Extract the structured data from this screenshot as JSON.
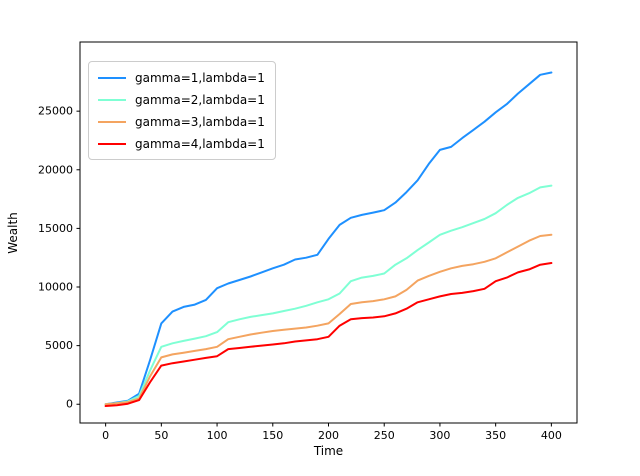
{
  "figure": {
    "background": "#ffffff",
    "frame_color": "#000000",
    "tick_color": "#000000"
  },
  "chart_data": {
    "type": "line",
    "title": "",
    "xlabel": "Time",
    "ylabel": "Wealth",
    "xlim": [
      -23,
      423
    ],
    "ylim": [
      -1600,
      30900
    ],
    "x_ticks": [
      0,
      50,
      100,
      150,
      200,
      250,
      300,
      350,
      400
    ],
    "y_ticks": [
      0,
      5000,
      10000,
      15000,
      20000,
      25000
    ],
    "grid": false,
    "legend_position": "upper-left",
    "x": [
      0,
      10,
      20,
      30,
      40,
      50,
      60,
      70,
      80,
      90,
      100,
      110,
      120,
      130,
      140,
      150,
      160,
      170,
      180,
      190,
      200,
      210,
      220,
      230,
      240,
      250,
      260,
      270,
      280,
      290,
      300,
      310,
      320,
      330,
      340,
      350,
      360,
      370,
      380,
      390,
      400
    ],
    "series": [
      {
        "name": "gamma=1,lambda=1",
        "color": "#1e90ff",
        "values": [
          0,
          150,
          300,
          900,
          3800,
          6900,
          7900,
          8300,
          8500,
          8900,
          9900,
          10300,
          10600,
          10900,
          11250,
          11600,
          11900,
          12350,
          12500,
          12750,
          14100,
          15300,
          15900,
          16150,
          16350,
          16550,
          17200,
          18100,
          19100,
          20500,
          21700,
          21950,
          22700,
          23400,
          24100,
          24900,
          25600,
          26500,
          27300,
          28100,
          28300
        ]
      },
      {
        "name": "gamma=2,lambda=1",
        "color": "#7fffd4",
        "values": [
          0,
          100,
          250,
          700,
          2900,
          4900,
          5200,
          5400,
          5600,
          5800,
          6150,
          7000,
          7250,
          7450,
          7600,
          7750,
          7950,
          8150,
          8400,
          8700,
          8950,
          9450,
          10500,
          10800,
          10950,
          11150,
          11900,
          12450,
          13150,
          13800,
          14450,
          14800,
          15100,
          15450,
          15800,
          16300,
          17000,
          17600,
          18000,
          18500,
          18650
        ]
      },
      {
        "name": "gamma=3,lambda=1",
        "color": "#f4a460",
        "values": [
          0,
          80,
          180,
          500,
          2400,
          4000,
          4250,
          4400,
          4550,
          4700,
          4900,
          5550,
          5750,
          5950,
          6100,
          6250,
          6350,
          6450,
          6550,
          6700,
          6900,
          7700,
          8550,
          8700,
          8800,
          8950,
          9200,
          9750,
          10550,
          10950,
          11300,
          11600,
          11800,
          11950,
          12150,
          12450,
          12950,
          13450,
          13950,
          14350,
          14450
        ]
      },
      {
        "name": "gamma=4,lambda=1",
        "color": "#ff0000",
        "values": [
          -150,
          -80,
          50,
          350,
          1900,
          3300,
          3500,
          3650,
          3800,
          3950,
          4100,
          4700,
          4800,
          4900,
          5000,
          5100,
          5200,
          5350,
          5450,
          5550,
          5750,
          6700,
          7250,
          7350,
          7400,
          7500,
          7750,
          8150,
          8700,
          8950,
          9200,
          9400,
          9500,
          9650,
          9850,
          10500,
          10800,
          11250,
          11500,
          11900,
          12050
        ]
      }
    ]
  }
}
